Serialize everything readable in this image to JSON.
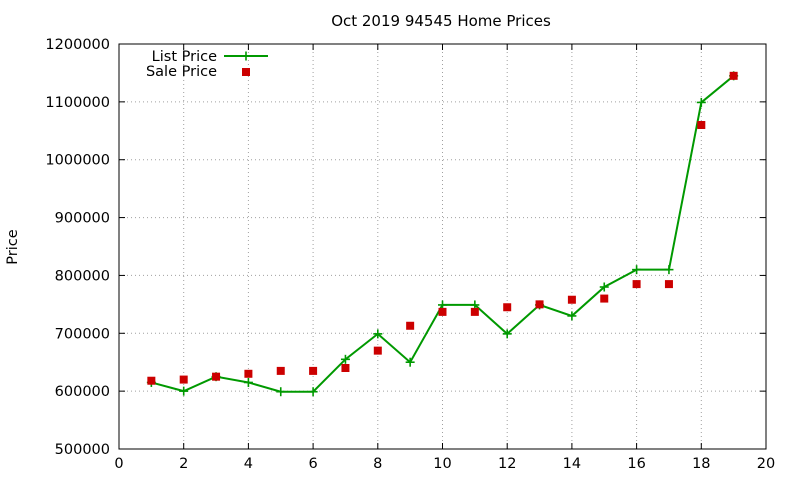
{
  "chart_data": {
    "type": "line",
    "title": "Oct 2019 94545 Home Prices",
    "xlabel": "",
    "ylabel": "Price",
    "xlim": [
      0,
      20
    ],
    "ylim": [
      500000,
      1200000
    ],
    "x_ticks": [
      0,
      2,
      4,
      6,
      8,
      10,
      12,
      14,
      16,
      18,
      20
    ],
    "y_ticks": [
      500000,
      600000,
      700000,
      800000,
      900000,
      1000000,
      1100000,
      1200000
    ],
    "grid": true,
    "legend_position": "top-left",
    "series": [
      {
        "name": "List Price",
        "style": "line-with-plus-markers",
        "color": "#009900",
        "x": [
          1,
          2,
          3,
          4,
          5,
          6,
          7,
          8,
          9,
          10,
          11,
          12,
          13,
          14,
          15,
          16,
          17,
          18,
          19
        ],
        "values": [
          615000,
          600000,
          625000,
          615000,
          599000,
          599000,
          655000,
          699000,
          650000,
          749000,
          749000,
          699000,
          749000,
          730000,
          780000,
          810000,
          810000,
          1099000,
          1145000
        ]
      },
      {
        "name": "Sale Price",
        "style": "square-markers",
        "color": "#cc0000",
        "x": [
          1,
          2,
          3,
          4,
          5,
          6,
          7,
          8,
          9,
          10,
          11,
          12,
          13,
          14,
          15,
          16,
          17,
          18,
          19
        ],
        "values": [
          618000,
          620000,
          625000,
          630000,
          635000,
          635000,
          640000,
          670000,
          713000,
          737000,
          737000,
          745000,
          750000,
          758000,
          760000,
          785000,
          785000,
          1060000,
          1145000
        ]
      }
    ]
  }
}
